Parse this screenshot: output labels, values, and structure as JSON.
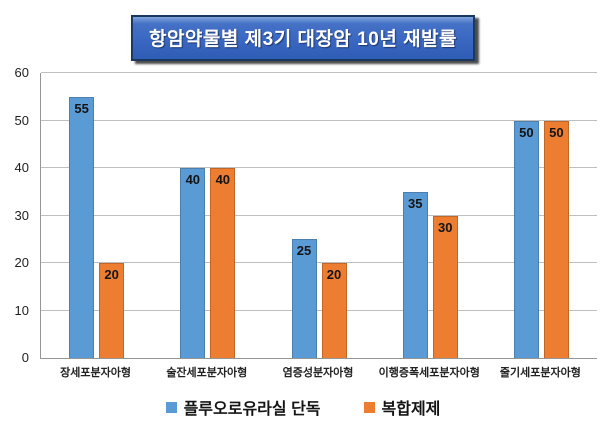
{
  "title": "항암약물별 제3기 대장암 10년 재발률",
  "colors": {
    "series_blue": "#5B9BD5",
    "series_orange": "#ED7D31",
    "gridline": "#BFBFBF",
    "title_box_fill": "#3A67C2",
    "title_box_border": "#17375E",
    "title_text": "#FFFFFF"
  },
  "chart_data": {
    "type": "bar",
    "title": "항암약물별 제3기 대장암 10년 재발률",
    "categories": [
      "장세포분자아형",
      "술잔세포분자아형",
      "염증성분자아형",
      "이행증폭세포분자아형",
      "줄기세포분자아형"
    ],
    "series": [
      {
        "name": "플루오로유라실 단독",
        "color": "#5B9BD5",
        "values": [
          55,
          40,
          25,
          35,
          50
        ]
      },
      {
        "name": "복합제제",
        "color": "#ED7D31",
        "values": [
          20,
          40,
          20,
          30,
          50
        ]
      }
    ],
    "xlabel": "",
    "ylabel": "",
    "ylim": [
      0,
      60
    ],
    "yticks": [
      0,
      10,
      20,
      30,
      40,
      50,
      60
    ],
    "grid": true,
    "data_labels": true,
    "legend_position": "bottom"
  }
}
